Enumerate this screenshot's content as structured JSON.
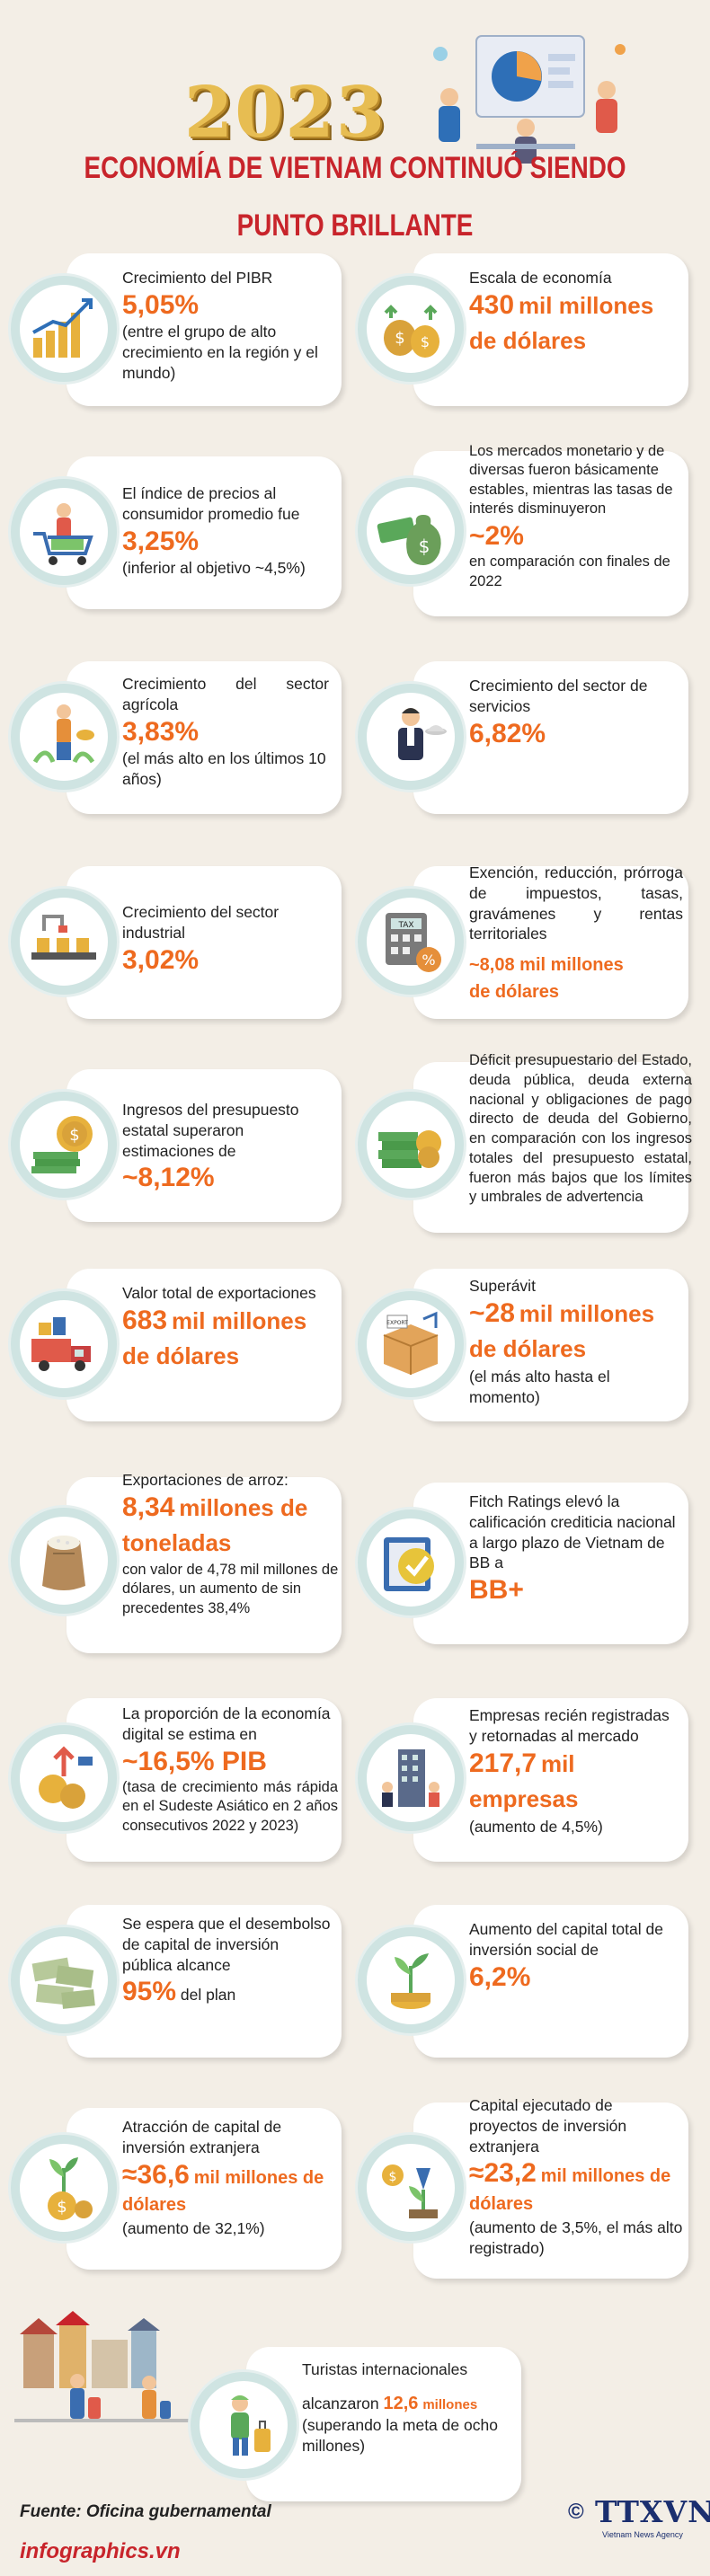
{
  "header": {
    "year": "2023",
    "title_line1": "ECONOMÍA DE VIETNAM CONTINUÓ SIENDO",
    "title_line2": "PUNTO BRILLANTE"
  },
  "items": [
    {
      "l1": "Crecimiento del PIBR",
      "big": "5,05%",
      "l2": "(entre el grupo de alto crecimiento en la región y el mundo)",
      "icon": "growth-coins-icon"
    },
    {
      "l1": "Escala de economía",
      "big": "430",
      "big_unit": "mil millones",
      "big_line2": "de dólares",
      "icon": "money-bags-icon"
    },
    {
      "l1": "El índice de precios al consumidor promedio fue",
      "big": "3,25%",
      "l2": "(inferior al objetivo ~4,5%)",
      "icon": "shopping-cart-icon"
    },
    {
      "l1": "Los mercados monetario y de diversas fueron básicamente estables, mientras las tasas de interés disminuyeron",
      "big": "~2%",
      "l2": "en comparación con finales de 2022",
      "icon": "money-bag-icon"
    },
    {
      "l1": "Crecimiento del sector agrícola",
      "big": "3,83%",
      "l2": "(el más alto en los últimos 10 años)",
      "icon": "farmer-icon"
    },
    {
      "l1": "Crecimiento del sector de servicios",
      "big": "6,82%",
      "icon": "waiter-icon"
    },
    {
      "l1": "Crecimiento del sector industrial",
      "big": "3,02%",
      "icon": "factory-line-icon"
    },
    {
      "l1": "Exención, reducción, prórroga de impuestos, tasas, gravámenes y rentas territoriales",
      "big": "~8,08 mil millones",
      "big_line2": "de dólares",
      "icon": "tax-calculator-icon"
    },
    {
      "l1": "Ingresos del presupuesto estatal superaron estimaciones de",
      "big": "~8,12%",
      "icon": "coin-stack-icon"
    },
    {
      "l1": "Déficit presupuestario del Estado, deuda pública, deuda externa nacional y obligaciones de pago directo de deuda del Gobierno, en comparación con los ingresos totales del presupuesto estatal, fueron más bajos que los límites y umbrales de advertencia",
      "icon": "cash-stacks-icon"
    },
    {
      "l1": "Valor total de exportaciones",
      "big": "683",
      "big_unit": "mil millones",
      "big_line2": "de dólares",
      "icon": "export-truck-icon"
    },
    {
      "l1": "Superávit",
      "big": "~28",
      "big_unit": "mil millones",
      "big_line2": "de dólares",
      "l2": "(el más alto hasta el momento)",
      "icon": "parcel-icon"
    },
    {
      "l1": "Exportaciones de arroz:",
      "big": "8,34",
      "big_unit": "millones de",
      "big_line2": "toneladas",
      "l2": "con valor de 4,78 mil millones de dólares, un aumento de sin precedentes 38,4%",
      "icon": "rice-sack-icon"
    },
    {
      "l1": "Fitch Ratings elevó la calificación crediticia nacional a largo plazo de Vietnam de BB a",
      "big": "BB+",
      "icon": "rating-badge-icon"
    },
    {
      "l1": "La proporción de la economía digital se estima en",
      "big": "~16,5% PIB",
      "l2": "(tasa de crecimiento más rápida en el Sudeste Asiático en 2 años consecutivos 2022 y 2023)",
      "icon": "digital-coins-icon"
    },
    {
      "l1": "Empresas recién registradas y retornadas al mercado",
      "big": "217,7",
      "big_unit": "mil",
      "big_line2": "empresas",
      "l2": "(aumento de 4,5%)",
      "icon": "office-building-icon"
    },
    {
      "l1": "Se espera que el desembolso de capital de inversión pública alcance",
      "big": "95%",
      "big_after": "del plan",
      "icon": "banknotes-icon"
    },
    {
      "l1": "Aumento del capital total de inversión social de",
      "big": "6,2%",
      "icon": "plant-coins-icon"
    },
    {
      "l1": "Atracción de capital de inversión extranjera",
      "big": "≈36,6",
      "big_unit": "mil millones de",
      "big_line2": "dólares",
      "l2": "(aumento de 32,1%)",
      "icon": "money-tree-icon"
    },
    {
      "l1": "Capital ejecutado de proyectos de inversión extranjera",
      "big": "≈23,2",
      "big_unit": "mil millones de",
      "big_line2": "dólares",
      "l2": "(aumento de 3,5%, el más alto registrado)",
      "icon": "investment-plant-icon"
    },
    {
      "l1": "Turistas internacionales",
      "l2a": "alcanzaron",
      "big": "12,6",
      "big_unit": "millones",
      "l2": "(superando la meta de ocho millones)",
      "icon": "tourist-icon"
    }
  ],
  "footer": {
    "source": "Fuente: Oficina gubernamental",
    "site": "infographics.vn",
    "copyright": "©",
    "agency": "TTXVN",
    "agency_sub": "Vietnam News Agency"
  },
  "colors": {
    "accent": "#ee6a1f",
    "title": "#c8242b",
    "gold": "#e7bd52",
    "background": "#f3eee6",
    "circle_ring": "#cfe4e2"
  }
}
